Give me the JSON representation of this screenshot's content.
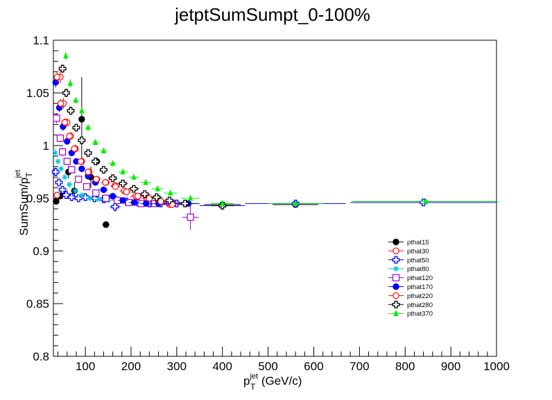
{
  "chart_data": {
    "type": "scatter",
    "title": "jetptSumSumpt_0-100%",
    "xlabel": {
      "main": "p",
      "sub": "T",
      "sup": "jet",
      "unit": " (GeV/c)"
    },
    "ylabel": {
      "main": "SumSum/p",
      "sub": "T",
      "sup": "jet"
    },
    "xlim": [
      30,
      1000
    ],
    "ylim": [
      0.8,
      1.1
    ],
    "x_ticks": [
      100,
      200,
      300,
      400,
      500,
      600,
      700,
      800,
      900,
      1000
    ],
    "x_tick_labels": [
      "100",
      "200",
      "300",
      "400",
      "500",
      "600",
      "700",
      "800",
      "900",
      "1000"
    ],
    "y_ticks": [
      0.8,
      0.85,
      0.9,
      0.95,
      1.0,
      1.05,
      1.1
    ],
    "y_tick_labels": [
      "0.8",
      "0.85",
      "0.9",
      "0.95",
      "1",
      "1.05",
      "1.1"
    ],
    "legend_position": "lower-right",
    "series": [
      {
        "name": "pthat15",
        "color": "#000000",
        "marker": "filled-circle",
        "points": [
          [
            36,
            0.947,
            0.002,
            3
          ],
          [
            44,
            0.952,
            0.003,
            3
          ],
          [
            52,
            0.955,
            0.004,
            4
          ],
          [
            63,
            0.975,
            0.006,
            5
          ],
          [
            76,
            0.957,
            0.008,
            6
          ],
          [
            92,
            1.025,
            0.04,
            7
          ],
          [
            112,
            0.97,
            0.01,
            9
          ],
          [
            125,
            0.985,
            0.004,
            8
          ],
          [
            145,
            0.925,
            0.002,
            8
          ],
          [
            285,
            0.946,
            0.004,
            15
          ],
          [
            325,
            0.945,
            0.003,
            25
          ],
          [
            400,
            0.944,
            0.003,
            40
          ],
          [
            560,
            0.944,
            0.002,
            50
          ]
        ]
      },
      {
        "name": "pthat30",
        "color": "#ff0000",
        "marker": "open-circle",
        "points": [
          [
            38,
            0.953,
            0.002,
            3
          ],
          [
            45,
            1.065,
            0.006,
            3
          ],
          [
            52,
            1.04,
            0.005,
            3
          ],
          [
            60,
            1.022,
            0.004,
            4
          ],
          [
            68,
            1.009,
            0.004,
            4
          ],
          [
            78,
            0.997,
            0.004,
            5
          ],
          [
            92,
            0.985,
            0.003,
            6
          ],
          [
            108,
            0.975,
            0.003,
            8
          ],
          [
            125,
            0.968,
            0.002,
            8
          ],
          [
            145,
            0.965,
            0.002,
            10
          ],
          [
            165,
            0.962,
            0.002,
            10
          ],
          [
            185,
            0.957,
            0.002,
            10
          ],
          [
            210,
            0.952,
            0.002,
            12
          ],
          [
            235,
            0.95,
            0.002,
            12
          ],
          [
            260,
            0.947,
            0.002,
            12
          ],
          [
            285,
            0.944,
            0.002,
            14
          ]
        ]
      },
      {
        "name": "pthat50",
        "color": "#0000ff",
        "marker": "open-cross",
        "points": [
          [
            35,
            0.975,
            0.004,
            3
          ],
          [
            42,
            0.965,
            0.003,
            3
          ],
          [
            50,
            0.958,
            0.003,
            4
          ],
          [
            58,
            0.953,
            0.003,
            4
          ],
          [
            70,
            0.951,
            0.002,
            5
          ],
          [
            85,
            0.95,
            0.002,
            6
          ],
          [
            100,
            0.951,
            0.002,
            7
          ],
          [
            120,
            0.95,
            0.002,
            8
          ],
          [
            140,
            0.949,
            0.002,
            10
          ],
          [
            165,
            0.942,
            0.005,
            12
          ],
          [
            190,
            0.947,
            0.003,
            12
          ],
          [
            215,
            0.946,
            0.003,
            12
          ],
          [
            240,
            0.945,
            0.003,
            12
          ],
          [
            265,
            0.945,
            0.003,
            15
          ],
          [
            300,
            0.945,
            0.002,
            30
          ],
          [
            400,
            0.943,
            0.002,
            50
          ],
          [
            560,
            0.945,
            0.001,
            110
          ],
          [
            840,
            0.946,
            0.001,
            160
          ]
        ]
      },
      {
        "name": "pthat80",
        "color": "#00cccc",
        "marker": "star",
        "points": [
          [
            34,
            0.993,
            0.004,
            3
          ],
          [
            40,
            0.985,
            0.003,
            3
          ],
          [
            47,
            0.978,
            0.003,
            3
          ],
          [
            55,
            0.97,
            0.003,
            4
          ],
          [
            65,
            0.963,
            0.003,
            5
          ],
          [
            78,
            0.957,
            0.003,
            6
          ],
          [
            92,
            0.953,
            0.002,
            7
          ],
          [
            110,
            0.95,
            0.002,
            8
          ],
          [
            130,
            0.949,
            0.002,
            10
          ],
          [
            150,
            0.948,
            0.002,
            10
          ],
          [
            175,
            0.947,
            0.002,
            12
          ],
          [
            200,
            0.946,
            0.002,
            12
          ],
          [
            228,
            0.945,
            0.002,
            12
          ],
          [
            258,
            0.944,
            0.002,
            14
          ]
        ]
      },
      {
        "name": "pthat120",
        "color": "#9900cc",
        "marker": "open-square",
        "points": [
          [
            37,
            1.026,
            0.005,
            3
          ],
          [
            45,
            1.007,
            0.004,
            3
          ],
          [
            50,
            0.994,
            0.004,
            3
          ],
          [
            60,
            0.985,
            0.003,
            4
          ],
          [
            70,
            0.977,
            0.003,
            5
          ],
          [
            85,
            0.968,
            0.003,
            6
          ],
          [
            103,
            0.961,
            0.002,
            7
          ],
          [
            123,
            0.955,
            0.002,
            8
          ],
          [
            145,
            0.95,
            0.002,
            10
          ],
          [
            170,
            0.948,
            0.002,
            12
          ],
          [
            195,
            0.946,
            0.002,
            12
          ],
          [
            222,
            0.945,
            0.002,
            12
          ],
          [
            252,
            0.945,
            0.002,
            14
          ],
          [
            285,
            0.946,
            0.002,
            16
          ],
          [
            330,
            0.932,
            0.012,
            18
          ]
        ]
      },
      {
        "name": "pthat170",
        "color": "#0000ff",
        "marker": "filled-circle",
        "points": [
          [
            35,
            1.06,
            0.005,
            3
          ],
          [
            43,
            1.036,
            0.004,
            3
          ],
          [
            51,
            1.018,
            0.004,
            4
          ],
          [
            60,
            1.004,
            0.003,
            4
          ],
          [
            70,
            0.993,
            0.003,
            5
          ],
          [
            80,
            0.985,
            0.003,
            6
          ],
          [
            92,
            0.978,
            0.003,
            6
          ],
          [
            106,
            0.971,
            0.003,
            7
          ],
          [
            122,
            0.965,
            0.002,
            8
          ],
          [
            140,
            0.958,
            0.002,
            9
          ],
          [
            160,
            0.952,
            0.002,
            10
          ],
          [
            182,
            0.948,
            0.002,
            11
          ],
          [
            207,
            0.946,
            0.002,
            12
          ],
          [
            233,
            0.945,
            0.002,
            13
          ],
          [
            260,
            0.945,
            0.002,
            14
          ],
          [
            290,
            0.945,
            0.002,
            15
          ],
          [
            325,
            0.945,
            0.002,
            17
          ]
        ]
      },
      {
        "name": "pthat220",
        "color": "#ff0000",
        "marker": "open-circle",
        "points": [
          [
            38,
            1.065,
            0.005,
            3
          ],
          [
            46,
            1.04,
            0.004,
            3
          ],
          [
            55,
            1.022,
            0.004,
            4
          ],
          [
            65,
            1.009,
            0.003,
            4
          ],
          [
            76,
            0.997,
            0.003,
            5
          ],
          [
            90,
            0.985,
            0.003,
            6
          ],
          [
            106,
            0.975,
            0.003,
            7
          ],
          [
            124,
            0.968,
            0.002,
            8
          ],
          [
            144,
            0.965,
            0.002,
            9
          ],
          [
            166,
            0.961,
            0.002,
            10
          ],
          [
            190,
            0.956,
            0.002,
            11
          ],
          [
            215,
            0.952,
            0.002,
            12
          ],
          [
            240,
            0.95,
            0.002,
            12
          ],
          [
            265,
            0.947,
            0.002,
            13
          ],
          [
            290,
            0.944,
            0.002,
            14
          ]
        ]
      },
      {
        "name": "pthat280",
        "color": "#000000",
        "marker": "open-cross",
        "points": [
          [
            50,
            1.073,
            0.004,
            3
          ],
          [
            58,
            1.05,
            0.004,
            4
          ],
          [
            68,
            1.033,
            0.004,
            4
          ],
          [
            80,
            1.017,
            0.003,
            5
          ],
          [
            92,
            1.005,
            0.003,
            6
          ],
          [
            106,
            0.993,
            0.003,
            7
          ],
          [
            122,
            0.985,
            0.002,
            8
          ],
          [
            140,
            0.977,
            0.002,
            9
          ],
          [
            160,
            0.969,
            0.002,
            10
          ],
          [
            182,
            0.964,
            0.002,
            11
          ],
          [
            206,
            0.959,
            0.002,
            12
          ],
          [
            230,
            0.954,
            0.002,
            12
          ],
          [
            256,
            0.951,
            0.002,
            13
          ],
          [
            284,
            0.948,
            0.002,
            14
          ],
          [
            318,
            0.945,
            0.002,
            18
          ],
          [
            400,
            0.943,
            0.002,
            25
          ]
        ]
      },
      {
        "name": "pthat370",
        "color": "#00ee00",
        "marker": "small-star",
        "points": [
          [
            57,
            1.085,
            0.004,
            3
          ],
          [
            67,
            1.059,
            0.004,
            4
          ],
          [
            79,
            1.043,
            0.003,
            5
          ],
          [
            92,
            1.033,
            0.003,
            5
          ],
          [
            106,
            1.017,
            0.003,
            6
          ],
          [
            122,
            1.003,
            0.003,
            7
          ],
          [
            140,
            0.995,
            0.002,
            8
          ],
          [
            160,
            0.983,
            0.002,
            9
          ],
          [
            182,
            0.975,
            0.002,
            10
          ],
          [
            206,
            0.97,
            0.002,
            11
          ],
          [
            232,
            0.965,
            0.002,
            12
          ],
          [
            258,
            0.959,
            0.002,
            13
          ],
          [
            286,
            0.955,
            0.002,
            14
          ],
          [
            330,
            0.95,
            0.002,
            20
          ],
          [
            400,
            0.945,
            0.002,
            25
          ],
          [
            560,
            0.945,
            0.001,
            60
          ],
          [
            845,
            0.947,
            0.001,
            160
          ]
        ]
      }
    ]
  }
}
